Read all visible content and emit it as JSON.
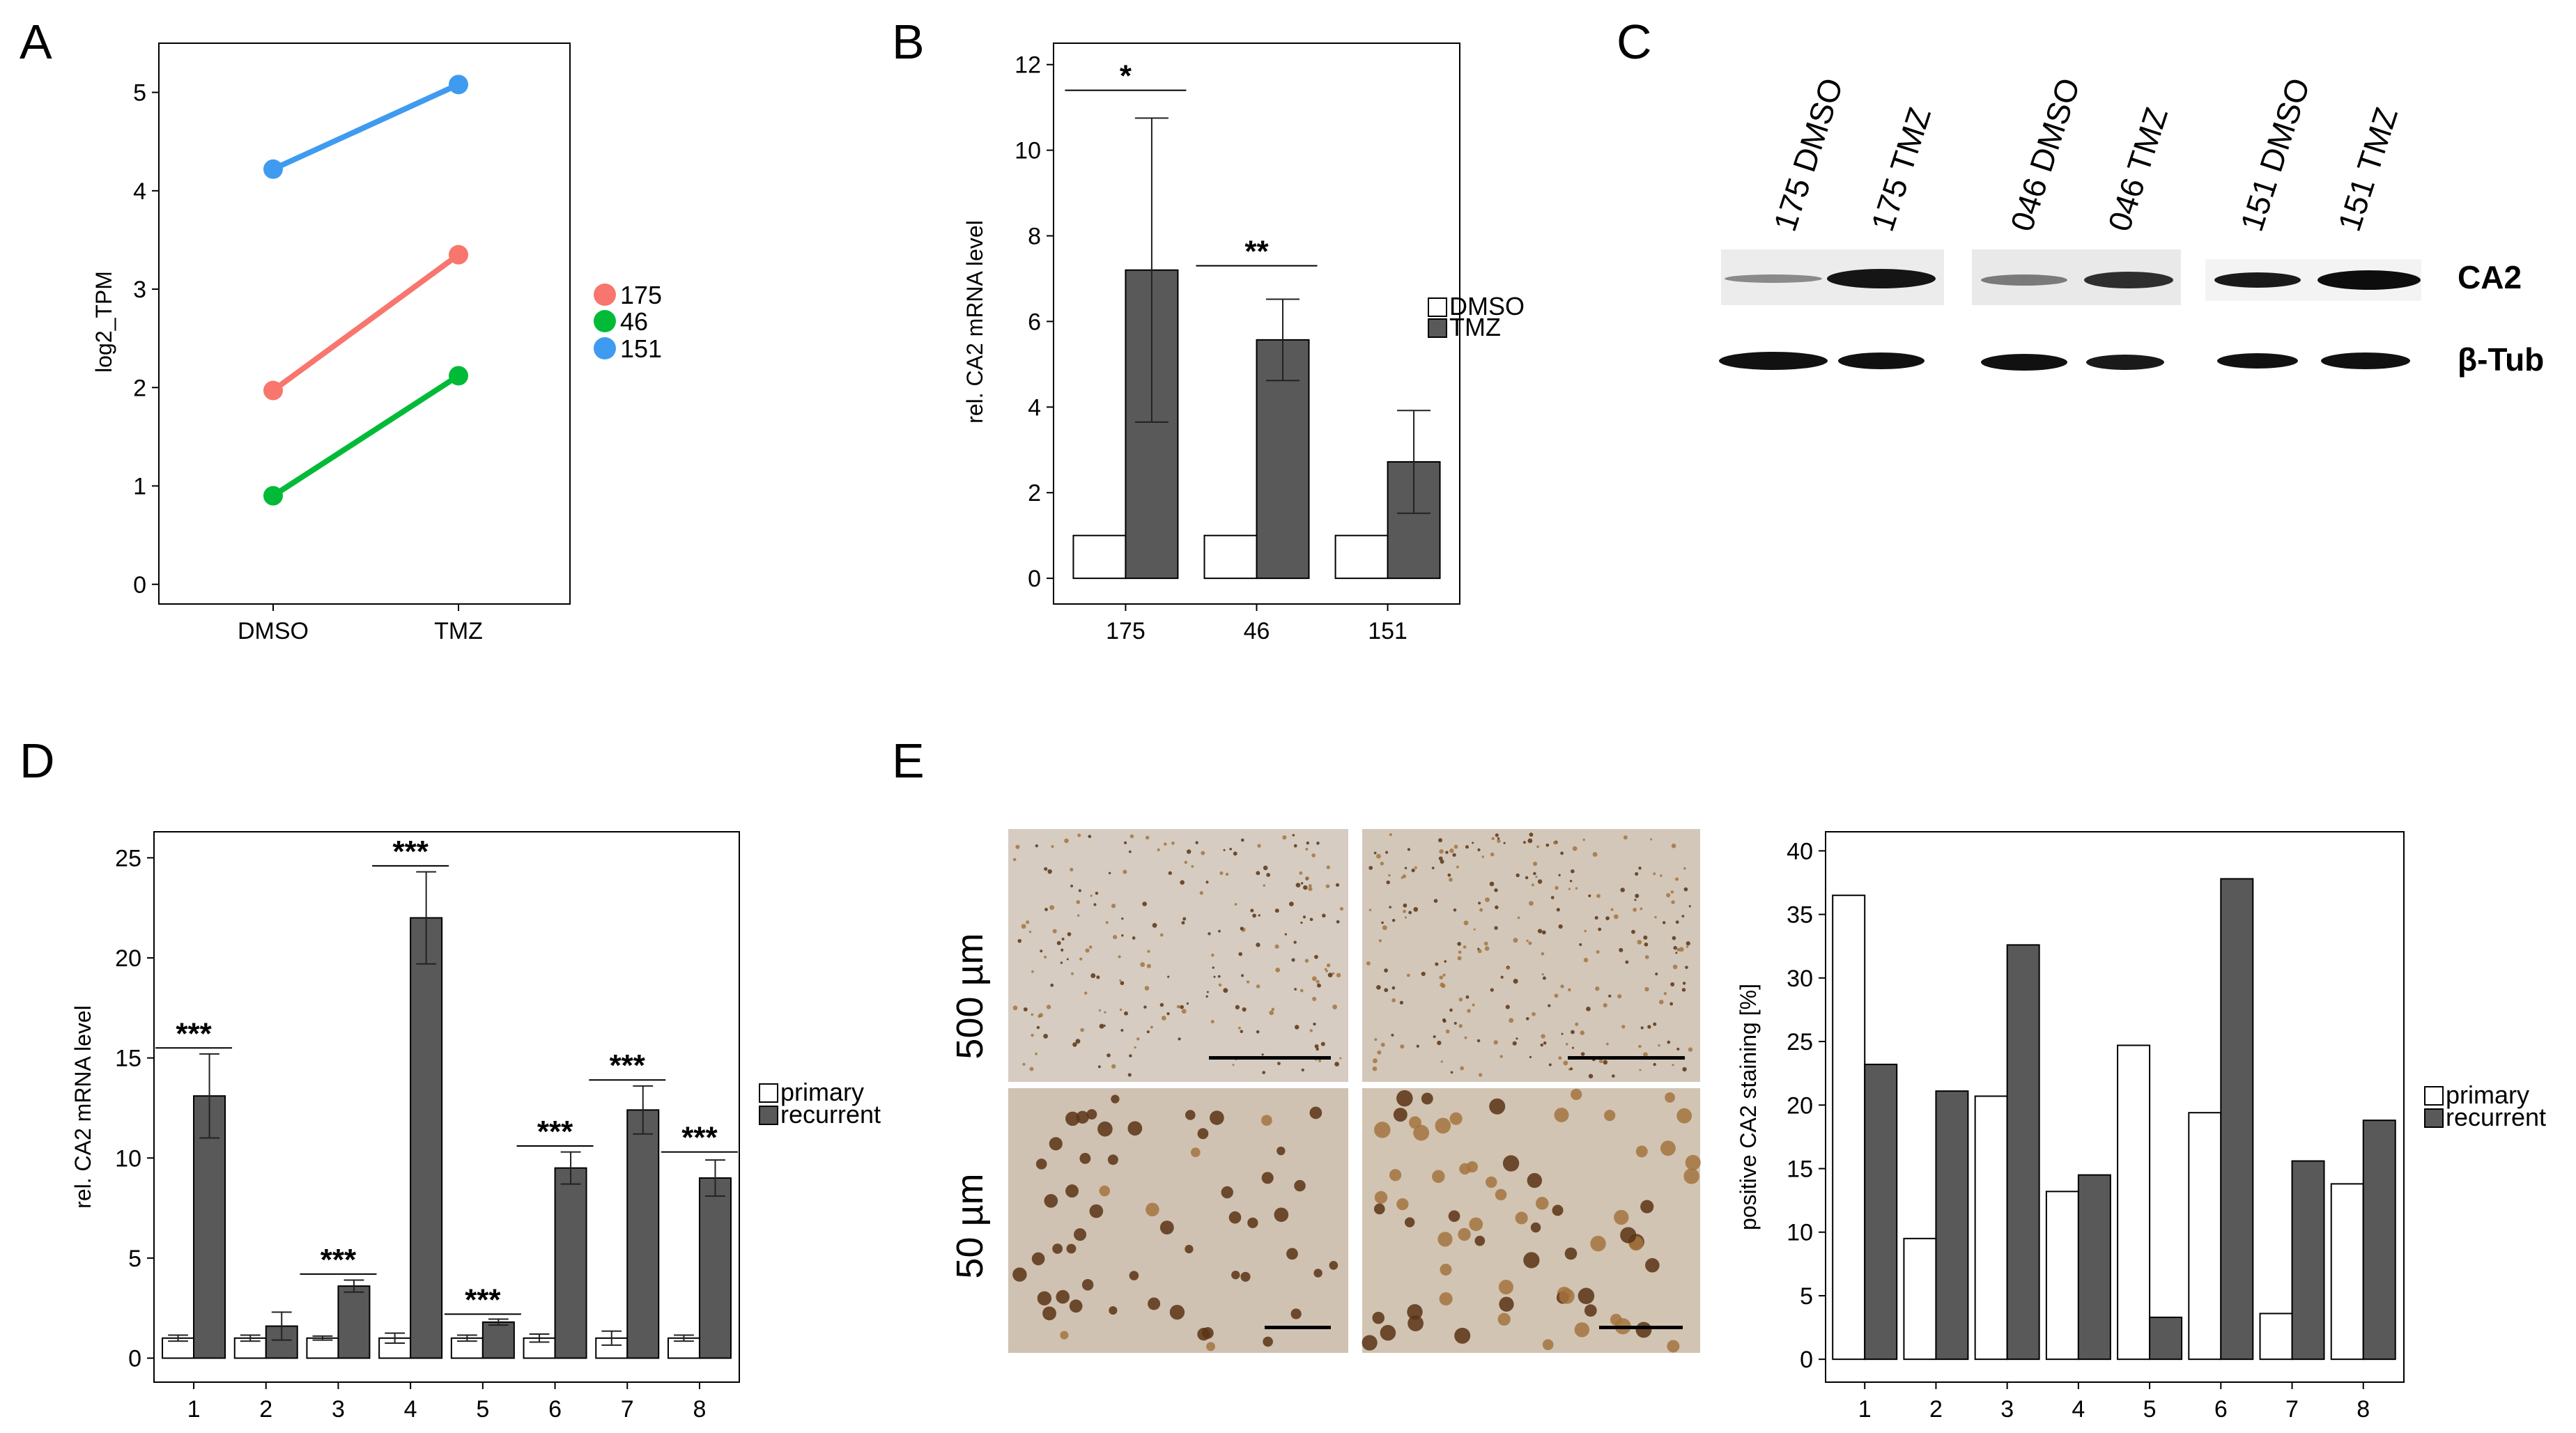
{
  "panel_labels": [
    "A",
    "B",
    "C",
    "D",
    "E"
  ],
  "colors": {
    "series_175": "#F8766D",
    "series_46": "#00BA38",
    "series_151": "#3F9BF0",
    "bar_dark": "#595959",
    "bar_light": "#FFFFFF",
    "ihc_background": "#D4C7B8",
    "ihc_stain": "#8B5A2B"
  },
  "panelA": {
    "ylabel": "log2_TPM",
    "legend": [
      "175",
      "46",
      "151"
    ]
  },
  "panelB": {
    "ylabel": "rel. CA2 mRNA level",
    "legend": [
      "DMSO",
      "TMZ"
    ],
    "significance": [
      "*",
      "**"
    ]
  },
  "panelC": {
    "lanes": [
      "175 DMSO",
      "175 TMZ",
      "046 DMSO",
      "046 TMZ",
      "151 DMSO",
      "151 TMZ"
    ],
    "proteins": [
      "CA2",
      "β-Tub"
    ]
  },
  "panelD": {
    "ylabel": "rel. CA2 mRNA level",
    "legend": [
      "primary",
      "recurrent"
    ],
    "significance": [
      "***",
      "***",
      "***",
      "***",
      "***",
      "***",
      "***"
    ]
  },
  "panelE": {
    "scale_labels": [
      "500 µm",
      "50 µm"
    ],
    "ylabel": "positive CA2 staining [%]",
    "legend": [
      "primary",
      "recurrent"
    ]
  },
  "chart_data": [
    {
      "panel": "A",
      "type": "line",
      "x": [
        "DMSO",
        "TMZ"
      ],
      "ylabel": "log2_TPM",
      "ylim": [
        -0.2,
        5.5
      ],
      "yticks": [
        0,
        1,
        2,
        3,
        4,
        5
      ],
      "series": [
        {
          "name": "175",
          "values": [
            1.97,
            3.35
          ],
          "color": "#F8766D"
        },
        {
          "name": "46",
          "values": [
            0.9,
            2.12
          ],
          "color": "#00BA38"
        },
        {
          "name": "151",
          "values": [
            4.22,
            5.08
          ],
          "color": "#3F9BF0"
        }
      ],
      "legend_position": "right"
    },
    {
      "panel": "B",
      "type": "bar",
      "categories": [
        "175",
        "46",
        "151"
      ],
      "ylabel": "rel. CA2 mRNA level",
      "ylim": [
        -0.6,
        12.5
      ],
      "yticks": [
        0,
        2,
        4,
        6,
        8,
        10,
        12
      ],
      "series": [
        {
          "name": "DMSO",
          "values": [
            1,
            1,
            1
          ],
          "errors": [
            0,
            0,
            0
          ]
        },
        {
          "name": "TMZ",
          "values": [
            7.2,
            5.57,
            2.72
          ],
          "errors": [
            3.55,
            0.95,
            1.2
          ]
        }
      ],
      "significance": [
        {
          "category": "175",
          "label": "*",
          "y": 11.4
        },
        {
          "category": "46",
          "label": "**",
          "y": 7.3
        }
      ],
      "legend_position": "right"
    },
    {
      "panel": "D",
      "type": "bar",
      "categories": [
        "1",
        "2",
        "3",
        "4",
        "5",
        "6",
        "7",
        "8"
      ],
      "ylabel": "rel. CA2 mRNA level",
      "ylim": [
        -1.2,
        26.3
      ],
      "yticks": [
        0,
        5,
        10,
        15,
        20,
        25
      ],
      "series": [
        {
          "name": "primary",
          "values": [
            1,
            1,
            1,
            1,
            1,
            1,
            1,
            1
          ],
          "errors": [
            0.15,
            0.15,
            0.1,
            0.25,
            0.15,
            0.2,
            0.35,
            0.15
          ]
        },
        {
          "name": "recurrent",
          "values": [
            13.1,
            1.6,
            3.6,
            22.0,
            1.8,
            9.5,
            12.4,
            9.0
          ],
          "errors": [
            2.1,
            0.7,
            0.3,
            2.3,
            0.15,
            0.8,
            1.2,
            0.9
          ]
        }
      ],
      "significance": [
        {
          "category": "1",
          "label": "***",
          "y": 15.5
        },
        {
          "category": "3",
          "label": "***",
          "y": 4.2
        },
        {
          "category": "4",
          "label": "***",
          "y": 24.6
        },
        {
          "category": "5",
          "label": "***",
          "y": 2.2
        },
        {
          "category": "6",
          "label": "***",
          "y": 10.6
        },
        {
          "category": "7",
          "label": "***",
          "y": 13.9
        },
        {
          "category": "8",
          "label": "***",
          "y": 10.3
        }
      ],
      "legend_position": "right"
    },
    {
      "panel": "E",
      "type": "bar",
      "categories": [
        "1",
        "2",
        "3",
        "4",
        "5",
        "6",
        "7",
        "8"
      ],
      "ylabel": "positive CA2 staining [%]",
      "ylim": [
        -1.8,
        41.5
      ],
      "yticks": [
        0,
        5,
        10,
        15,
        20,
        25,
        30,
        35,
        40
      ],
      "series": [
        {
          "name": "primary",
          "values": [
            36.5,
            9.5,
            20.7,
            13.2,
            24.7,
            19.4,
            3.6,
            13.8
          ]
        },
        {
          "name": "recurrent",
          "values": [
            23.2,
            21.1,
            32.6,
            14.5,
            3.3,
            37.8,
            15.6,
            18.8
          ]
        }
      ],
      "legend_position": "right"
    }
  ]
}
